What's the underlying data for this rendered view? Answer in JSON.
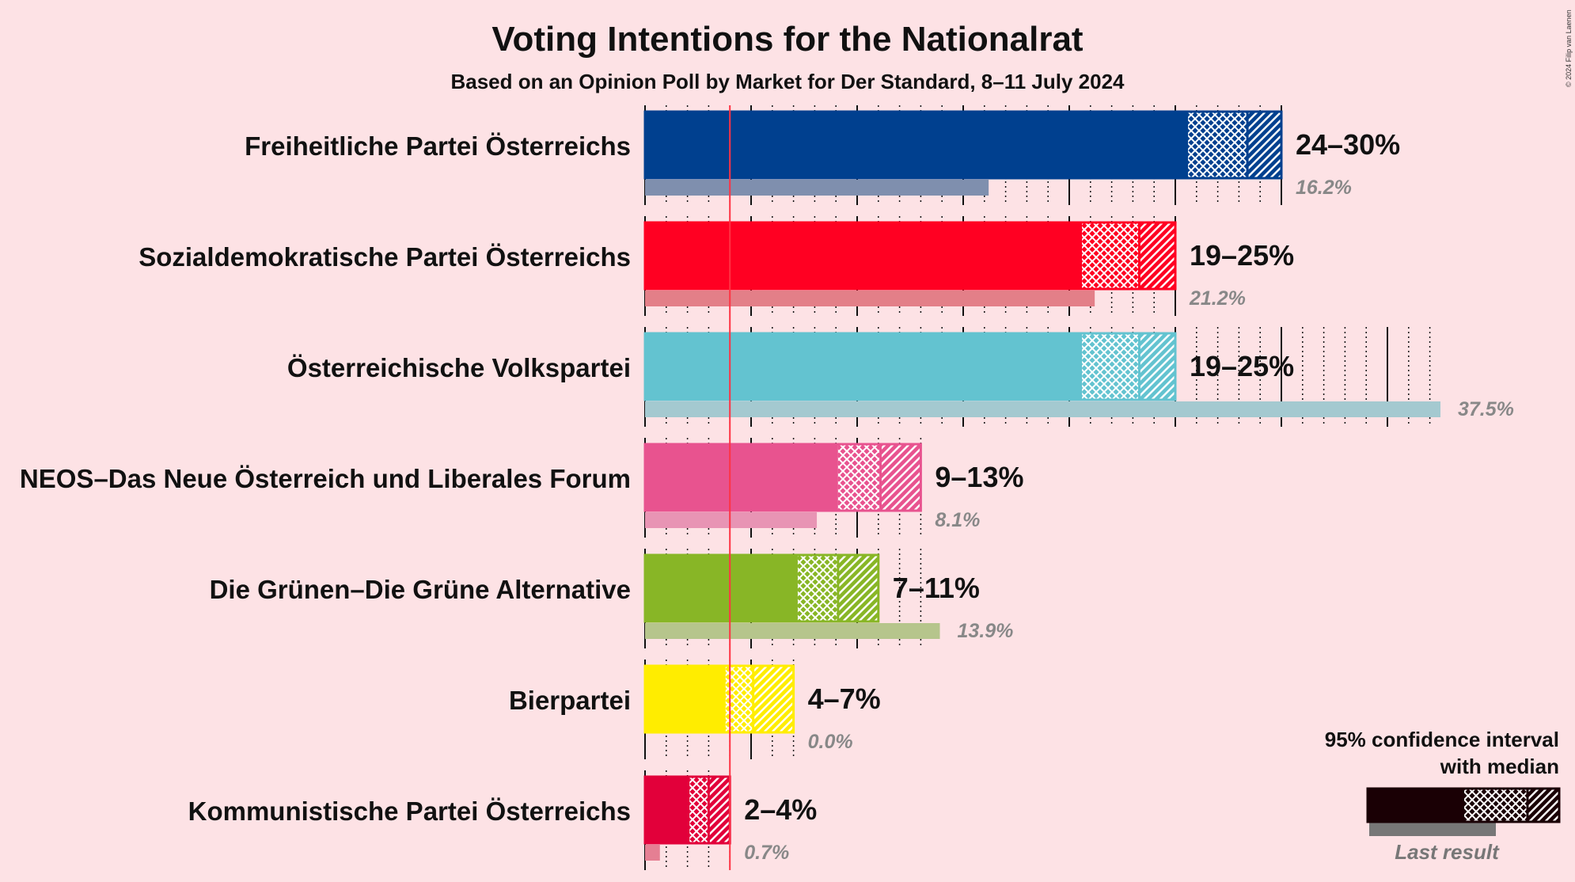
{
  "chart_data": {
    "type": "bar",
    "title": "Voting Intentions for the Nationalrat",
    "subtitle": "Based on an Opinion Poll by Market for Der Standard, 8–11 July 2024",
    "copyright": "© 2024 Filip van Laenen",
    "threshold": 4,
    "series": [
      {
        "name": "Freiheitliche Partei Österreichs",
        "color": "#00408f",
        "last_color": "#7f8fae",
        "ci95": [
          24,
          30
        ],
        "ci80": [
          25.6,
          28.4
        ],
        "median": 27,
        "last": 16.2,
        "range_label": "24–30%",
        "last_label": "16.2%"
      },
      {
        "name": "Sozialdemokratische Partei Österreichs",
        "color": "#ff0022",
        "last_color": "#e37f88",
        "ci95": [
          19,
          25
        ],
        "ci80": [
          20.6,
          23.3
        ],
        "median": 22.1,
        "last": 21.2,
        "range_label": "19–25%",
        "last_label": "21.2%"
      },
      {
        "name": "Österreichische Volkspartei",
        "color": "#63c3d0",
        "last_color": "#a4c9d0",
        "ci95": [
          19,
          25
        ],
        "ci80": [
          20.6,
          23.3
        ],
        "median": 22.1,
        "last": 37.5,
        "range_label": "19–25%",
        "last_label": "37.5%"
      },
      {
        "name": "NEOS–Das Neue Österreich und Liberales Forum",
        "color": "#e8538f",
        "last_color": "#e894b4",
        "ci95": [
          9,
          13
        ],
        "ci80": [
          9.1,
          11.1
        ],
        "median": 10.9,
        "last": 8.1,
        "range_label": "9–13%",
        "last_label": "8.1%"
      },
      {
        "name": "Die Grünen–Die Grüne Alternative",
        "color": "#88b626",
        "last_color": "#b6c58c",
        "ci95": [
          7,
          11
        ],
        "ci80": [
          7.2,
          9.1
        ],
        "median": 9.0,
        "last": 13.9,
        "range_label": "7–11%",
        "last_label": "13.9%"
      },
      {
        "name": "Bierpartei",
        "color": "#ffed00",
        "last_color": "#f6ea88",
        "ci95": [
          4,
          7
        ],
        "ci80": [
          3.8,
          5.1
        ],
        "median": 5.2,
        "last": 0.0,
        "range_label": "4–7%",
        "last_label": "0.0%"
      },
      {
        "name": "Kommunistische Partei Österreichs",
        "color": "#e2003a",
        "last_color": "#e57f93",
        "ci95": [
          2,
          4
        ],
        "ci80": [
          2.1,
          3.0
        ],
        "median": 3.1,
        "last": 0.7,
        "range_label": "2–4%",
        "last_label": "0.7%"
      }
    ],
    "legend": {
      "line1": "95% confidence interval",
      "line2": "with median",
      "last_label": "Last result",
      "placement": "bottom-right"
    }
  }
}
